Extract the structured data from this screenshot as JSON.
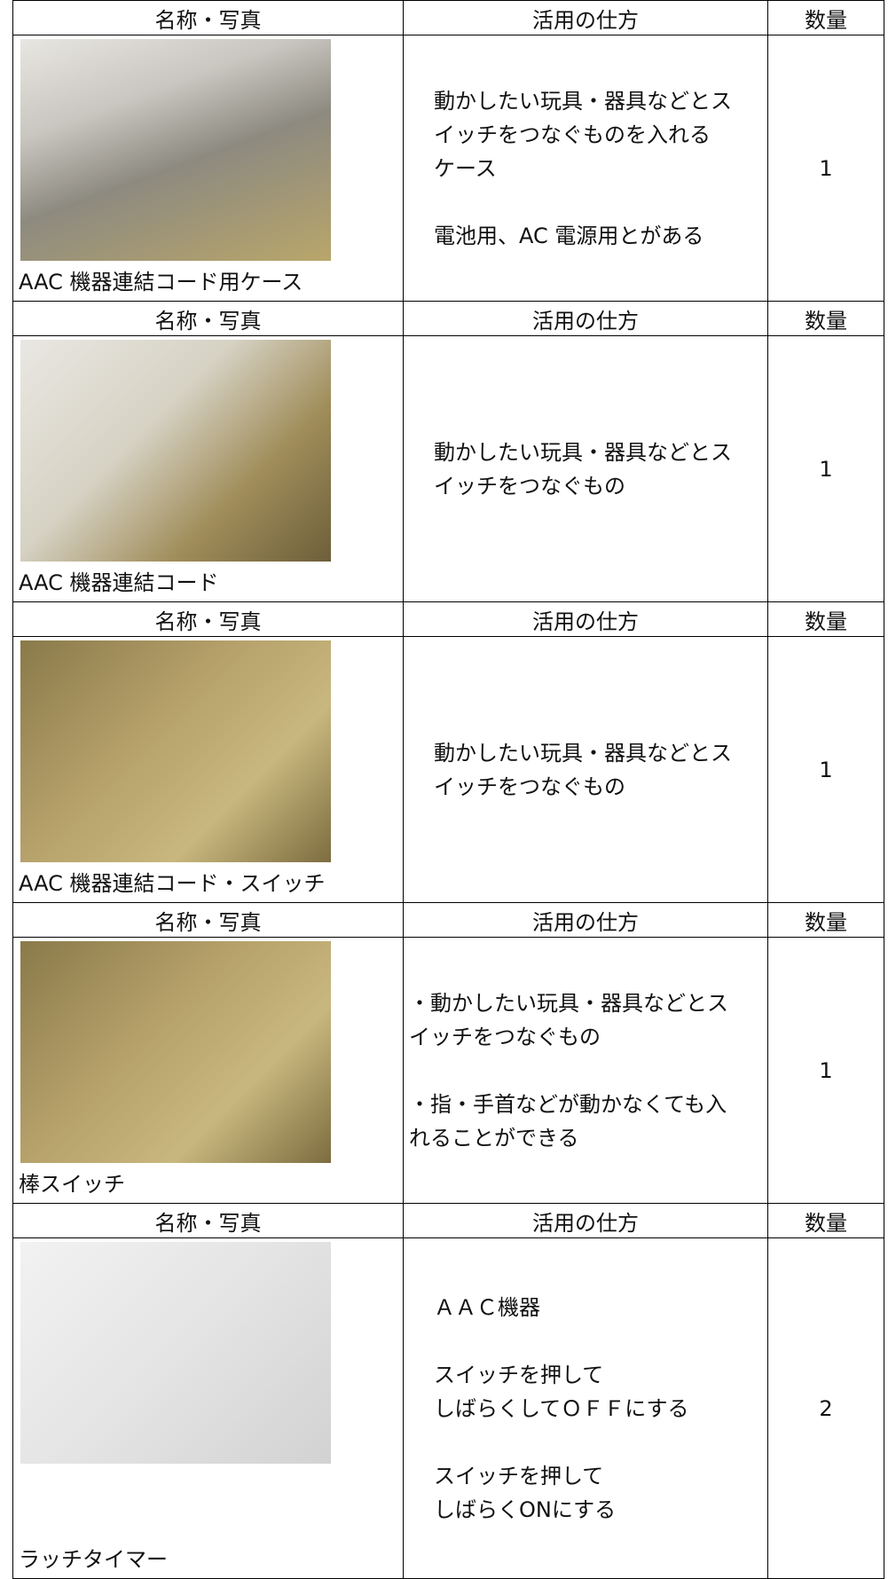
{
  "table": {
    "blocks": [
      {
        "header": [
          "名称・写真",
          "活用の仕方",
          "数量"
        ],
        "name": "AAC 機器連結コード用ケース",
        "usage": [
          [
            "動かしたい玩具・器具などとス",
            "イッチをつなぐものを入れる",
            "ケース"
          ],
          [
            "電池用、AC 電源用とがある"
          ]
        ],
        "quantity": 1
      },
      {
        "header": [
          "名称・写真",
          "活用の仕方",
          "数量"
        ],
        "name": "AAC 機器連結コード",
        "usage": [
          [
            "動かしたい玩具・器具などとス",
            "イッチをつなぐもの"
          ]
        ],
        "quantity": 1
      },
      {
        "header": [
          "名称・写真",
          "活用の仕方",
          "数量"
        ],
        "name": "AAC 機器連結コード・スイッチ",
        "usage": [
          [
            "動かしたい玩具・器具などとス",
            "イッチをつなぐもの"
          ]
        ],
        "quantity": 1
      },
      {
        "header": [
          "名称・写真",
          "活用の仕方",
          "数量"
        ],
        "name": "棒スイッチ",
        "usage": [
          [
            "・動かしたい玩具・器具などとス",
            "イッチをつなぐもの"
          ],
          [
            "・指・手首などが動かなくても入",
            "れることができる"
          ]
        ],
        "quantity": 1
      },
      {
        "header": [
          "名称・写真",
          "活用の仕方",
          "数量"
        ],
        "name": "ラッチタイマー",
        "usage": [
          [
            "ＡＡＣ機器"
          ],
          [
            "スイッチを押して",
            "しばらくしてＯＦＦにする"
          ],
          [
            "スイッチを押して",
            "しばらくONにする"
          ]
        ],
        "quantity": 2
      }
    ]
  }
}
